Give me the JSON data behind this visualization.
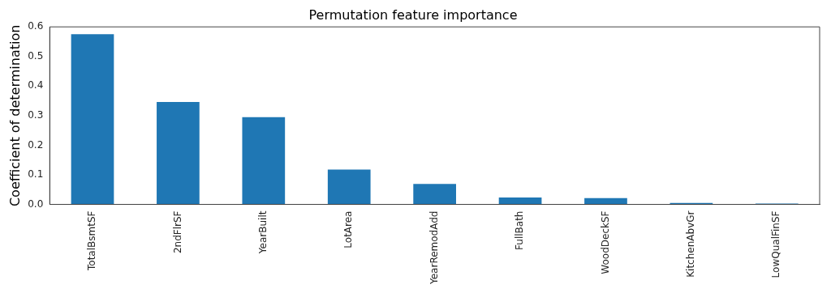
{
  "chart_data": {
    "type": "bar",
    "title": "Permutation feature importance",
    "ylabel": "Coefficient of determination",
    "categories": [
      "TotalBsmtSF",
      "2ndFlrSF",
      "YearBuilt",
      "LotArea",
      "YearRemodAdd",
      "FullBath",
      "WoodDeckSF",
      "KitchenAbvGr",
      "LowQualFinSF"
    ],
    "values": [
      0.575,
      0.346,
      0.295,
      0.118,
      0.069,
      0.023,
      0.021,
      0.005,
      0.003
    ],
    "color": "#1f77b4",
    "ylim": [
      0,
      0.6
    ],
    "yticks": [
      {
        "value": 0,
        "label": "0.0"
      },
      0.1,
      0.2,
      0.3,
      0.4,
      0.5,
      0.6
    ],
    "grid": false,
    "legend": false
  }
}
